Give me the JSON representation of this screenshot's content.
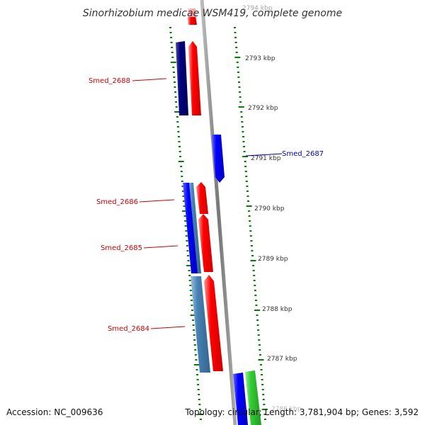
{
  "title": "Sinorhizobium medicae WSM419, complete genome",
  "footer": {
    "accession": "Accession: NC_009636",
    "summary": "Topology: circular; Length: 3,781,904 bp; Genes: 3,592"
  },
  "colors": {
    "forward_gene": "#ff0000",
    "reverse_gene": "#0000ff",
    "reverse_gene_dark": "#000080",
    "reverse_gene_light": "#4682b4",
    "other_gene": "#33cc33",
    "tick": "#008000",
    "backbone": "#888888"
  },
  "scale_labels": [
    "2794 kbp",
    "2793 kbp",
    "2792 kbp",
    "2791 kbp",
    "2790 kbp",
    "2789 kbp",
    "2788 kbp",
    "2787 kbp",
    "2786 kbp"
  ],
  "gene_labels": [
    {
      "text": "Smed_2688",
      "strand": "forward"
    },
    {
      "text": "Smed_2687",
      "strand": "reverse"
    },
    {
      "text": "Smed_2686",
      "strand": "forward"
    },
    {
      "text": "Smed_2685",
      "strand": "forward"
    },
    {
      "text": "Smed_2684",
      "strand": "forward"
    }
  ]
}
